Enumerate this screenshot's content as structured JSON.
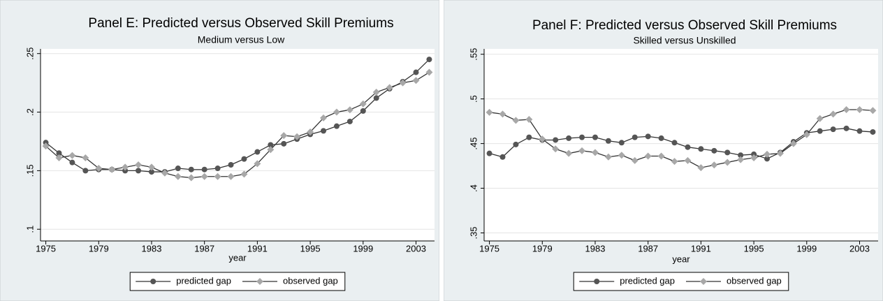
{
  "chart_data": [
    {
      "type": "line",
      "title": "Panel E: Predicted versus Observed Skill Premiums",
      "subtitle": "Medium versus Low",
      "x_label": "year",
      "x": [
        1975,
        1976,
        1977,
        1978,
        1979,
        1980,
        1981,
        1982,
        1983,
        1984,
        1985,
        1986,
        1987,
        1988,
        1989,
        1990,
        1991,
        1992,
        1993,
        1994,
        1995,
        1996,
        1997,
        1998,
        1999,
        2000,
        2001,
        2002,
        2003,
        2004
      ],
      "series": [
        {
          "name": "predicted gap",
          "color": "#555555",
          "marker": "circle",
          "values": [
            0.174,
            0.165,
            0.157,
            0.15,
            0.151,
            0.151,
            0.15,
            0.15,
            0.149,
            0.149,
            0.152,
            0.151,
            0.151,
            0.152,
            0.155,
            0.16,
            0.166,
            0.172,
            0.173,
            0.177,
            0.181,
            0.184,
            0.188,
            0.192,
            0.201,
            0.212,
            0.22,
            0.226,
            0.234,
            0.245
          ]
        },
        {
          "name": "observed gap",
          "color": "#a8a8a8",
          "marker": "diamond",
          "values": [
            0.171,
            0.161,
            0.163,
            0.161,
            0.152,
            0.151,
            0.153,
            0.155,
            0.153,
            0.148,
            0.145,
            0.144,
            0.145,
            0.145,
            0.145,
            0.147,
            0.156,
            0.168,
            0.18,
            0.179,
            0.183,
            0.195,
            0.2,
            0.202,
            0.207,
            0.217,
            0.221,
            0.225,
            0.227,
            0.234
          ]
        }
      ],
      "line_color": "#333333",
      "xlim": [
        1974.6,
        2004.4
      ],
      "xticks": [
        1975,
        1979,
        1983,
        1987,
        1991,
        1995,
        1999,
        2003
      ],
      "ylim": [
        0.09,
        0.254
      ],
      "yticks": [
        {
          "value": 0.1,
          "label": ".1"
        },
        {
          "value": 0.15,
          "label": ".15"
        },
        {
          "value": 0.2,
          "label": ".2"
        },
        {
          "value": 0.25,
          "label": ".25"
        }
      ],
      "grid": true
    },
    {
      "type": "line",
      "title": "Panel F: Predicted versus Observed Skill Premiums",
      "subtitle": "Skilled versus Unskilled",
      "x_label": "year",
      "x": [
        1975,
        1976,
        1977,
        1978,
        1979,
        1980,
        1981,
        1982,
        1983,
        1984,
        1985,
        1986,
        1987,
        1988,
        1989,
        1990,
        1991,
        1992,
        1993,
        1994,
        1995,
        1996,
        1997,
        1998,
        1999,
        2000,
        2001,
        2002,
        2003,
        2004
      ],
      "series": [
        {
          "name": "predicted gap",
          "color": "#555555",
          "marker": "circle",
          "values": [
            0.439,
            0.435,
            0.449,
            0.457,
            0.454,
            0.454,
            0.456,
            0.457,
            0.457,
            0.453,
            0.451,
            0.457,
            0.458,
            0.456,
            0.451,
            0.446,
            0.444,
            0.442,
            0.44,
            0.437,
            0.438,
            0.433,
            0.44,
            0.452,
            0.462,
            0.464,
            0.466,
            0.467,
            0.464,
            0.463
          ]
        },
        {
          "name": "observed gap",
          "color": "#a8a8a8",
          "marker": "diamond",
          "values": [
            0.485,
            0.483,
            0.476,
            0.477,
            0.455,
            0.444,
            0.439,
            0.442,
            0.44,
            0.435,
            0.437,
            0.431,
            0.436,
            0.436,
            0.43,
            0.431,
            0.423,
            0.426,
            0.429,
            0.432,
            0.434,
            0.438,
            0.439,
            0.45,
            0.46,
            0.478,
            0.483,
            0.488,
            0.488,
            0.487
          ]
        }
      ],
      "line_color": "#333333",
      "xlim": [
        1974.6,
        2004.4
      ],
      "xticks": [
        1975,
        1979,
        1983,
        1987,
        1991,
        1995,
        1999,
        2003
      ],
      "ylim": [
        0.341,
        0.556
      ],
      "yticks": [
        {
          "value": 0.35,
          "label": ".35"
        },
        {
          "value": 0.4,
          "label": ".4"
        },
        {
          "value": 0.45,
          "label": ".45"
        },
        {
          "value": 0.5,
          "label": ".5"
        },
        {
          "value": 0.55,
          "label": ".55"
        }
      ],
      "grid": true
    }
  ]
}
